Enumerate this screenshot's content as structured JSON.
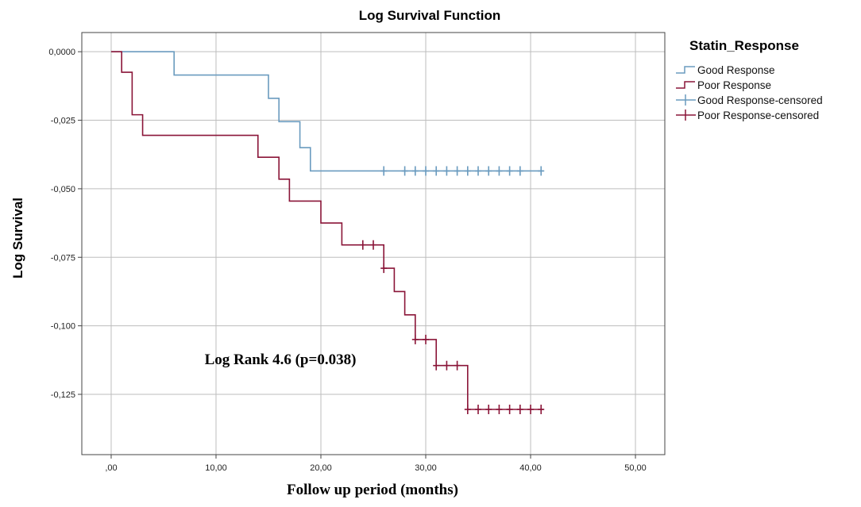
{
  "chart_data": {
    "type": "line",
    "step": true,
    "title": "Log Survival Function",
    "xlabel": "Follow up period (months)",
    "ylabel": "Log Survival",
    "xlim": [
      -2.8,
      52.8
    ],
    "ylim": [
      -0.147,
      0.007
    ],
    "x_ticks": [
      0,
      10,
      20,
      30,
      40,
      50
    ],
    "x_tick_labels": [
      ",00",
      "10,00",
      "20,00",
      "30,00",
      "40,00",
      "50,00"
    ],
    "y_ticks": [
      0,
      -0.025,
      -0.05,
      -0.075,
      -0.1,
      -0.125
    ],
    "y_tick_labels": [
      "0,0000",
      "-0,025",
      "-0,050",
      "-0,075",
      "-0,100",
      "-0,125"
    ],
    "grid": true,
    "legend": {
      "title": "Statin_Response",
      "position": "right",
      "entries": [
        "Good Response",
        "Poor Response",
        "Good Response-censored",
        "Poor Response-censored"
      ]
    },
    "annotation": "Log Rank 4.6 (p=0.038)",
    "series": [
      {
        "name": "Good Response",
        "color": "#6a9bbf",
        "steps": [
          [
            0,
            0
          ],
          [
            6,
            -0.0085
          ],
          [
            15,
            -0.017
          ],
          [
            16,
            -0.0255
          ],
          [
            18,
            -0.035
          ],
          [
            19,
            -0.0435
          ]
        ],
        "end_x": 41.2,
        "censored": [
          [
            26,
            -0.0435
          ],
          [
            28,
            -0.0435
          ],
          [
            29,
            -0.0435
          ],
          [
            30,
            -0.0435
          ],
          [
            31,
            -0.0435
          ],
          [
            32,
            -0.0435
          ],
          [
            33,
            -0.0435
          ],
          [
            34,
            -0.0435
          ],
          [
            35,
            -0.0435
          ],
          [
            36,
            -0.0435
          ],
          [
            37,
            -0.0435
          ],
          [
            38,
            -0.0435
          ],
          [
            39,
            -0.0435
          ],
          [
            41,
            -0.0435
          ]
        ]
      },
      {
        "name": "Poor Response",
        "color": "#8a1538",
        "steps": [
          [
            0,
            0
          ],
          [
            1,
            -0.0075
          ],
          [
            2,
            -0.023
          ],
          [
            3,
            -0.0305
          ],
          [
            14,
            -0.0385
          ],
          [
            16,
            -0.0465
          ],
          [
            17,
            -0.0545
          ],
          [
            20,
            -0.0625
          ],
          [
            22,
            -0.0705
          ],
          [
            26,
            -0.079
          ],
          [
            27,
            -0.0875
          ],
          [
            28,
            -0.096
          ],
          [
            29,
            -0.105
          ],
          [
            31,
            -0.1145
          ],
          [
            34,
            -0.1305
          ]
        ],
        "end_x": 41.2,
        "censored": [
          [
            24,
            -0.0705
          ],
          [
            25,
            -0.0705
          ],
          [
            26,
            -0.079
          ],
          [
            29,
            -0.105
          ],
          [
            30,
            -0.105
          ],
          [
            31,
            -0.1145
          ],
          [
            32,
            -0.1145
          ],
          [
            33,
            -0.1145
          ],
          [
            34,
            -0.1305
          ],
          [
            35,
            -0.1305
          ],
          [
            36,
            -0.1305
          ],
          [
            37,
            -0.1305
          ],
          [
            38,
            -0.1305
          ],
          [
            39,
            -0.1305
          ],
          [
            40,
            -0.1305
          ],
          [
            41,
            -0.1305
          ]
        ]
      }
    ]
  }
}
